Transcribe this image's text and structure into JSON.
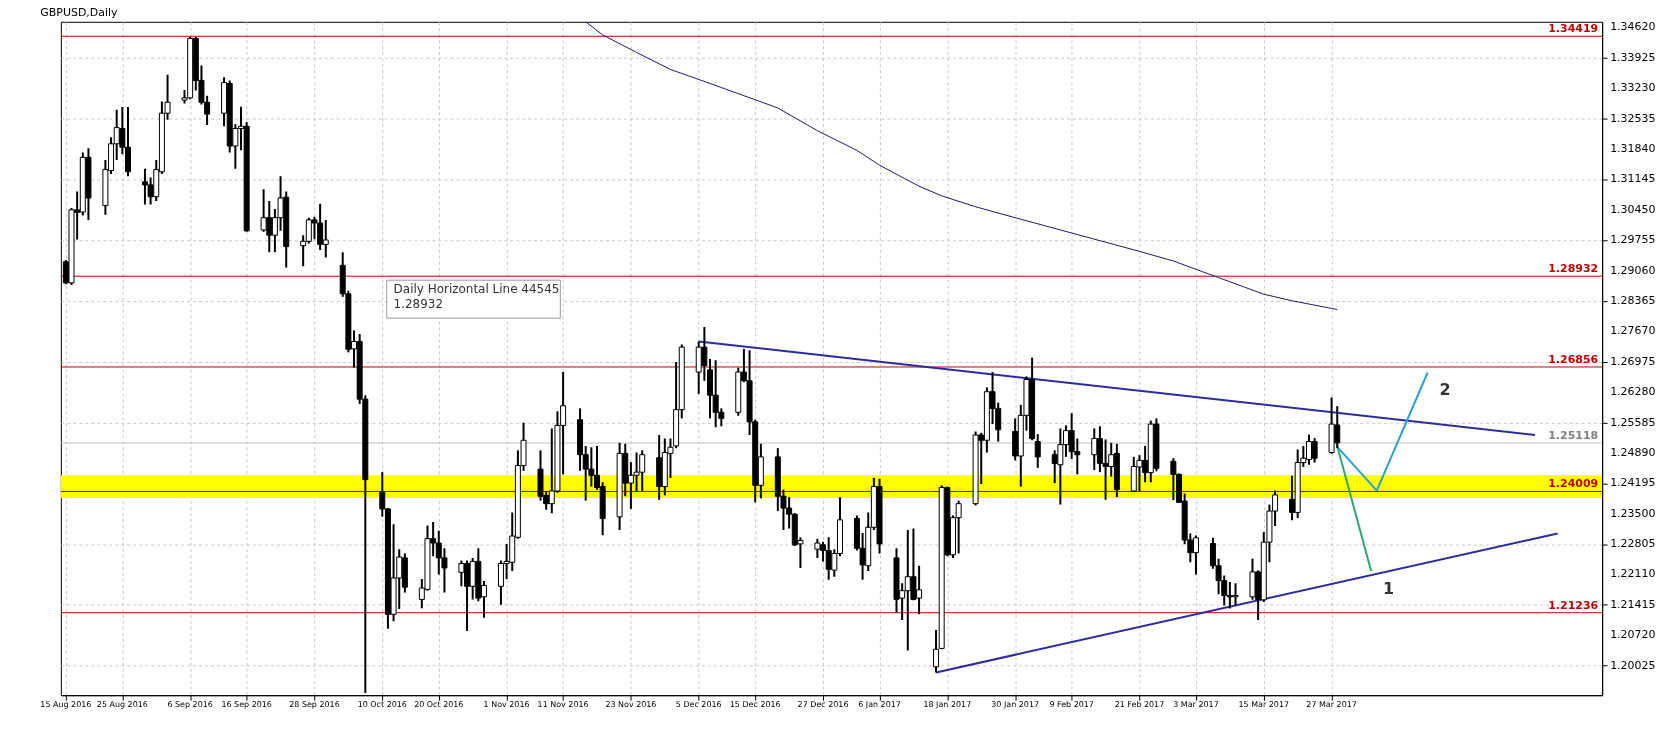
{
  "chart_data": {
    "type": "candlestick",
    "title": "GBPUSD,Daily",
    "x": [
      "2016-08-15",
      "2016-08-16",
      "2016-08-17",
      "2016-08-18",
      "2016-08-19",
      "2016-08-22",
      "2016-08-23",
      "2016-08-24",
      "2016-08-25",
      "2016-08-26",
      "2016-08-29",
      "2016-08-30",
      "2016-08-31",
      "2016-09-01",
      "2016-09-02",
      "2016-09-05",
      "2016-09-06",
      "2016-09-07",
      "2016-09-08",
      "2016-09-09",
      "2016-09-12",
      "2016-09-13",
      "2016-09-14",
      "2016-09-15",
      "2016-09-16",
      "2016-09-19",
      "2016-09-20",
      "2016-09-21",
      "2016-09-22",
      "2016-09-23",
      "2016-09-26",
      "2016-09-27",
      "2016-09-28",
      "2016-09-29",
      "2016-09-30",
      "2016-10-03",
      "2016-10-04",
      "2016-10-05",
      "2016-10-06",
      "2016-10-07",
      "2016-10-10",
      "2016-10-11",
      "2016-10-12",
      "2016-10-13",
      "2016-10-14",
      "2016-10-17",
      "2016-10-18",
      "2016-10-19",
      "2016-10-20",
      "2016-10-21",
      "2016-10-24",
      "2016-10-25",
      "2016-10-26",
      "2016-10-27",
      "2016-10-28",
      "2016-10-31",
      "2016-11-01",
      "2016-11-02",
      "2016-11-03",
      "2016-11-04",
      "2016-11-07",
      "2016-11-08",
      "2016-11-09",
      "2016-11-10",
      "2016-11-11",
      "2016-11-14",
      "2016-11-15",
      "2016-11-16",
      "2016-11-17",
      "2016-11-18",
      "2016-11-21",
      "2016-11-22",
      "2016-11-23",
      "2016-11-24",
      "2016-11-25",
      "2016-11-28",
      "2016-11-29",
      "2016-11-30",
      "2016-12-01",
      "2016-12-02",
      "2016-12-05",
      "2016-12-06",
      "2016-12-07",
      "2016-12-08",
      "2016-12-09",
      "2016-12-12",
      "2016-12-13",
      "2016-12-14",
      "2016-12-15",
      "2016-12-16",
      "2016-12-19",
      "2016-12-20",
      "2016-12-21",
      "2016-12-22",
      "2016-12-23",
      "2016-12-26",
      "2016-12-27",
      "2016-12-28",
      "2016-12-29",
      "2016-12-30",
      "2017-01-02",
      "2017-01-03",
      "2017-01-04",
      "2017-01-05",
      "2017-01-06",
      "2017-01-09",
      "2017-01-10",
      "2017-01-11",
      "2017-01-12",
      "2017-01-13",
      "2017-01-16",
      "2017-01-17",
      "2017-01-18",
      "2017-01-19",
      "2017-01-20",
      "2017-01-23",
      "2017-01-24",
      "2017-01-25",
      "2017-01-26",
      "2017-01-27",
      "2017-01-30",
      "2017-01-31",
      "2017-02-01",
      "2017-02-02",
      "2017-02-03",
      "2017-02-06",
      "2017-02-07",
      "2017-02-08",
      "2017-02-09",
      "2017-02-10",
      "2017-02-13",
      "2017-02-14",
      "2017-02-15",
      "2017-02-16",
      "2017-02-17",
      "2017-02-20",
      "2017-02-21",
      "2017-02-22",
      "2017-02-23",
      "2017-02-24",
      "2017-02-27",
      "2017-02-28",
      "2017-03-01",
      "2017-03-02",
      "2017-03-03",
      "2017-03-06",
      "2017-03-07",
      "2017-03-08",
      "2017-03-09",
      "2017-03-10",
      "2017-03-13",
      "2017-03-14",
      "2017-03-15",
      "2017-03-16",
      "2017-03-17",
      "2017-03-20",
      "2017-03-21",
      "2017-03-22",
      "2017-03-23",
      "2017-03-24",
      "2017-03-27",
      "2017-03-28"
    ],
    "ohlc": [
      [
        1.2926,
        1.293,
        1.2875,
        1.2878
      ],
      [
        1.2878,
        1.3049,
        1.2873,
        1.3045
      ],
      [
        1.3045,
        1.3087,
        1.2977,
        1.3039
      ],
      [
        1.304,
        1.3176,
        1.3032,
        1.3165
      ],
      [
        1.3165,
        1.3186,
        1.3022,
        1.3072
      ],
      [
        1.3055,
        1.3159,
        1.3034,
        1.3137
      ],
      [
        1.3135,
        1.3211,
        1.3127,
        1.3196
      ],
      [
        1.3196,
        1.3274,
        1.3159,
        1.3233
      ],
      [
        1.3231,
        1.328,
        1.3172,
        1.3188
      ],
      [
        1.3188,
        1.328,
        1.3122,
        1.3132
      ],
      [
        1.3109,
        1.3139,
        1.3057,
        1.3102
      ],
      [
        1.3102,
        1.3119,
        1.3057,
        1.3075
      ],
      [
        1.3075,
        1.3159,
        1.3065,
        1.3137
      ],
      [
        1.3132,
        1.3293,
        1.3127,
        1.3266
      ],
      [
        1.3266,
        1.3354,
        1.3251,
        1.3291
      ],
      [
        1.3296,
        1.3319,
        1.3288,
        1.3301
      ],
      [
        1.3301,
        1.344,
        1.3298,
        1.3437
      ],
      [
        1.3437,
        1.344,
        1.3318,
        1.3341
      ],
      [
        1.3341,
        1.3375,
        1.3286,
        1.3291
      ],
      [
        1.3291,
        1.3306,
        1.3239,
        1.3264
      ],
      [
        1.3266,
        1.3348,
        1.3236,
        1.3336
      ],
      [
        1.3334,
        1.3341,
        1.3176,
        1.3191
      ],
      [
        1.3191,
        1.3241,
        1.3139,
        1.3231
      ],
      [
        1.3231,
        1.3281,
        1.3181,
        1.3236
      ],
      [
        1.3236,
        1.3246,
        1.2995,
        1.2997
      ],
      [
        1.2999,
        1.3092,
        1.2995,
        1.3027
      ],
      [
        1.3027,
        1.3065,
        1.2948,
        1.2987
      ],
      [
        1.2987,
        1.3047,
        1.2948,
        1.3027
      ],
      [
        1.3027,
        1.3122,
        1.2997,
        1.3072
      ],
      [
        1.3074,
        1.3087,
        1.2913,
        1.2961
      ],
      [
        1.2963,
        1.2987,
        1.2916,
        1.2973
      ],
      [
        1.2973,
        1.3027,
        1.2968,
        1.3022
      ],
      [
        1.3022,
        1.3029,
        1.2978,
        1.3015
      ],
      [
        1.3015,
        1.3059,
        1.2953,
        1.2966
      ],
      [
        1.2966,
        1.3022,
        1.2936,
        1.2976
      ],
      [
        1.2918,
        1.2948,
        1.2846,
        1.2853
      ],
      [
        1.2853,
        1.286,
        1.2719,
        1.2726
      ],
      [
        1.2727,
        1.2769,
        1.2684,
        1.2744
      ],
      [
        1.2744,
        1.2761,
        1.2601,
        1.2612
      ],
      [
        1.2612,
        1.2621,
        1.194,
        1.2428
      ],
      [
        1.24,
        1.2445,
        1.2343,
        1.2361
      ],
      [
        1.2361,
        1.2363,
        1.2087,
        1.212
      ],
      [
        1.212,
        1.2326,
        1.2104,
        1.2203
      ],
      [
        1.2203,
        1.2269,
        1.2132,
        1.2251
      ],
      [
        1.2249,
        1.2259,
        1.217,
        1.2182
      ],
      [
        1.2154,
        1.2201,
        1.2134,
        1.218
      ],
      [
        1.2177,
        1.2323,
        1.2174,
        1.2293
      ],
      [
        1.2293,
        1.2331,
        1.2253,
        1.2283
      ],
      [
        1.2283,
        1.2311,
        1.2211,
        1.2249
      ],
      [
        1.2249,
        1.2271,
        1.217,
        1.2226
      ],
      [
        1.2216,
        1.2243,
        1.2184,
        1.2236
      ],
      [
        1.2236,
        1.2243,
        1.2082,
        1.2184
      ],
      [
        1.2184,
        1.2249,
        1.2154,
        1.2241
      ],
      [
        1.2241,
        1.2271,
        1.215,
        1.2157
      ],
      [
        1.216,
        1.2196,
        1.2112,
        1.2186
      ],
      [
        1.2184,
        1.2243,
        1.2142,
        1.2236
      ],
      [
        1.2236,
        1.2281,
        1.2201,
        1.2241
      ],
      [
        1.2239,
        1.2353,
        1.2219,
        1.2299
      ],
      [
        1.2296,
        1.2495,
        1.2293,
        1.246
      ],
      [
        1.246,
        1.2558,
        1.2448,
        1.2518
      ],
      [
        1.2452,
        1.2495,
        1.238,
        1.239
      ],
      [
        1.2392,
        1.2402,
        1.2359,
        1.2373
      ],
      [
        1.2373,
        1.2545,
        1.2351,
        1.2402
      ],
      [
        1.2402,
        1.2584,
        1.2398,
        1.2552
      ],
      [
        1.2552,
        1.2674,
        1.244,
        1.2597
      ],
      [
        1.2565,
        1.2591,
        1.2448,
        1.2485
      ],
      [
        1.2485,
        1.2505,
        1.238,
        1.2452
      ],
      [
        1.2452,
        1.2502,
        1.2412,
        1.2438
      ],
      [
        1.2438,
        1.2505,
        1.2405,
        1.241
      ],
      [
        1.2412,
        1.2422,
        1.2301,
        1.2339
      ],
      [
        1.2343,
        1.2512,
        1.2313,
        1.2488
      ],
      [
        1.2488,
        1.251,
        1.239,
        1.242
      ],
      [
        1.242,
        1.2468,
        1.2361,
        1.2438
      ],
      [
        1.2438,
        1.249,
        1.24,
        1.2445
      ],
      [
        1.2445,
        1.2495,
        1.2402,
        1.2485
      ],
      [
        1.2478,
        1.253,
        1.2382,
        1.2412
      ],
      [
        1.2412,
        1.2522,
        1.2392,
        1.249
      ],
      [
        1.2488,
        1.2522,
        1.2432,
        1.2502
      ],
      [
        1.2505,
        1.2697,
        1.25,
        1.2588
      ],
      [
        1.2588,
        1.2737,
        1.2568,
        1.2731
      ],
      [
        1.2674,
        1.2744,
        1.2624,
        1.2731
      ],
      [
        1.2731,
        1.2777,
        1.2654,
        1.2689
      ],
      [
        1.2679,
        1.2704,
        1.2568,
        1.2621
      ],
      [
        1.2621,
        1.2701,
        1.2548,
        1.2582
      ],
      [
        1.2582,
        1.2591,
        1.255,
        1.2568
      ],
      [
        1.2582,
        1.2684,
        1.2574,
        1.2674
      ],
      [
        1.2674,
        1.2727,
        1.2651,
        1.2654
      ],
      [
        1.2654,
        1.2724,
        1.253,
        1.256
      ],
      [
        1.256,
        1.2565,
        1.2376,
        1.2415
      ],
      [
        1.2415,
        1.251,
        1.2385,
        1.248
      ],
      [
        1.248,
        1.25,
        1.2356,
        1.239
      ],
      [
        1.239,
        1.2405,
        1.2313,
        1.2363
      ],
      [
        1.2363,
        1.2388,
        1.2316,
        1.2349
      ],
      [
        1.2349,
        1.2351,
        1.2276,
        1.2279
      ],
      [
        1.2281,
        1.2296,
        1.2226,
        1.2289
      ],
      [
        1.2269,
        1.2293,
        1.2249,
        1.2283
      ],
      [
        1.2279,
        1.2286,
        1.2241,
        1.2266
      ],
      [
        1.2266,
        1.2296,
        1.2199,
        1.2223
      ],
      [
        1.2221,
        1.2269,
        1.2206,
        1.2259
      ],
      [
        1.2259,
        1.2388,
        1.2253,
        1.2336
      ],
      [
        1.2339,
        1.2346,
        1.2266,
        1.2271
      ],
      [
        1.2271,
        1.2306,
        1.2199,
        1.2233
      ],
      [
        1.2231,
        1.2353,
        1.2219,
        1.2319
      ],
      [
        1.2319,
        1.2432,
        1.2313,
        1.2412
      ],
      [
        1.2412,
        1.243,
        1.2259,
        1.2281
      ],
      [
        1.2249,
        1.2271,
        1.2124,
        1.2154
      ],
      [
        1.2157,
        1.2191,
        1.2107,
        1.2174
      ],
      [
        1.2174,
        1.2313,
        1.2037,
        1.2206
      ],
      [
        1.2206,
        1.2316,
        1.2152,
        1.2154
      ],
      [
        1.2157,
        1.2231,
        1.212,
        1.2176
      ],
      [
        1.2,
        1.2084,
        1.1987,
        1.204
      ],
      [
        1.2042,
        1.2415,
        1.204,
        1.241
      ],
      [
        1.241,
        1.2412,
        1.2253,
        1.2256
      ],
      [
        1.2256,
        1.2346,
        1.2249,
        1.2341
      ],
      [
        1.2341,
        1.238,
        1.2259,
        1.2373
      ],
      [
        1.2373,
        1.2538,
        1.2369,
        1.253
      ],
      [
        1.253,
        1.2535,
        1.2418,
        1.2518
      ],
      [
        1.2518,
        1.2639,
        1.249,
        1.2629
      ],
      [
        1.2629,
        1.2674,
        1.2555,
        1.2591
      ],
      [
        1.2591,
        1.2604,
        1.2515,
        1.2542
      ],
      [
        1.2538,
        1.2568,
        1.2472,
        1.2482
      ],
      [
        1.2482,
        1.2599,
        1.2412,
        1.2575
      ],
      [
        1.2575,
        1.2664,
        1.254,
        1.2657
      ],
      [
        1.2657,
        1.2707,
        1.2518,
        1.2522
      ],
      [
        1.2515,
        1.2532,
        1.2455,
        1.248
      ],
      [
        1.2485,
        1.2495,
        1.242,
        1.2465
      ],
      [
        1.2462,
        1.2545,
        1.2371,
        1.2508
      ],
      [
        1.2508,
        1.2552,
        1.248,
        1.254
      ],
      [
        1.254,
        1.258,
        1.2475,
        1.2492
      ],
      [
        1.2492,
        1.2522,
        1.244,
        1.2485
      ],
      [
        1.2485,
        1.2545,
        1.245,
        1.2522
      ],
      [
        1.2522,
        1.255,
        1.2445,
        1.2465
      ],
      [
        1.2465,
        1.252,
        1.2382,
        1.2458
      ],
      [
        1.2458,
        1.2512,
        1.2435,
        1.2485
      ],
      [
        1.2488,
        1.251,
        1.2388,
        1.2405
      ],
      [
        1.2402,
        1.248,
        1.24,
        1.2458
      ],
      [
        1.2457,
        1.2484,
        1.2401,
        1.2472
      ],
      [
        1.2472,
        1.2505,
        1.2422,
        1.2444
      ],
      [
        1.2444,
        1.2563,
        1.2422,
        1.2555
      ],
      [
        1.2555,
        1.2568,
        1.2447,
        1.2454
      ],
      [
        1.247,
        1.2477,
        1.2381,
        1.244
      ],
      [
        1.244,
        1.2442,
        1.2376,
        1.2376
      ],
      [
        1.2379,
        1.2396,
        1.228,
        1.229
      ],
      [
        1.229,
        1.2305,
        1.2239,
        1.2261
      ],
      [
        1.2261,
        1.23,
        1.2211,
        1.2295
      ],
      [
        1.2282,
        1.2295,
        1.2224,
        1.2231
      ],
      [
        1.2231,
        1.2247,
        1.2166,
        1.2197
      ],
      [
        1.2197,
        1.2209,
        1.214,
        1.2163
      ],
      [
        1.2163,
        1.2194,
        1.2133,
        1.216
      ],
      [
        1.216,
        1.2191,
        1.214,
        1.2163
      ],
      [
        1.216,
        1.2247,
        1.2153,
        1.2217
      ],
      [
        1.2217,
        1.2221,
        1.2107,
        1.2153
      ],
      [
        1.2153,
        1.2308,
        1.2148,
        1.2285
      ],
      [
        1.2285,
        1.2371,
        1.2239,
        1.2356
      ],
      [
        1.2356,
        1.2403,
        1.2322,
        1.2393
      ],
      [
        1.2383,
        1.2437,
        1.2335,
        1.2353
      ],
      [
        1.2353,
        1.2497,
        1.234,
        1.2467
      ],
      [
        1.2467,
        1.2505,
        1.2457,
        1.2477
      ],
      [
        1.2474,
        1.2531,
        1.2462,
        1.2515
      ],
      [
        1.2515,
        1.2523,
        1.2467,
        1.2477
      ],
      [
        1.249,
        1.2616,
        1.2487,
        1.2555
      ],
      [
        1.2553,
        1.2596,
        1.25,
        1.2512
      ]
    ],
    "series": [
      {
        "type": "line",
        "color": "#1c1c6b",
        "x": [
          "2016-11-15",
          "2016-11-18",
          "2016-11-24",
          "2016-11-30",
          "2016-12-07",
          "2016-12-13",
          "2016-12-19",
          "2016-12-26",
          "2017-01-02",
          "2017-01-06",
          "2017-01-13",
          "2017-01-17",
          "2017-01-23",
          "2017-01-30",
          "2017-02-09",
          "2017-02-21",
          "2017-02-27",
          "2017-03-07",
          "2017-03-15",
          "2017-03-20",
          "2017-03-28"
        ],
        "values": [
          1.3475,
          1.3445,
          1.3405,
          1.3366,
          1.3334,
          1.3306,
          1.3278,
          1.3226,
          1.3181,
          1.3147,
          1.3099,
          1.3077,
          1.3052,
          1.3027,
          1.2992,
          1.295,
          1.2928,
          1.289,
          1.2852,
          1.2837,
          1.2817
        ]
      },
      {
        "type": "line",
        "color": "#2b2b9e",
        "x": [
          "2016-12-05",
          "2017-05-02"
        ],
        "values": [
          1.2744,
          1.253
        ]
      },
      {
        "type": "line",
        "color": "#2b2b9e",
        "x": [
          "2017-01-16",
          "2017-05-06"
        ],
        "values": [
          1.1987,
          1.2305
        ]
      },
      {
        "type": "line",
        "color": "#2ea866",
        "x": [
          "2017-03-28",
          "2017-04-03"
        ],
        "values": [
          1.2505,
          1.2219
        ]
      },
      {
        "type": "line",
        "color": "#2aa0d8",
        "x": [
          "2017-03-28",
          "2017-04-04",
          "2017-04-13"
        ],
        "values": [
          1.2503,
          1.2403,
          1.2673
        ]
      }
    ],
    "xlim": [
      "2016-08-15",
      "2017-05-13"
    ],
    "xticks": [
      {
        "value": "2016-08-15",
        "label": "15 Aug 2016"
      },
      {
        "value": "2016-08-25",
        "label": "25 Aug 2016"
      },
      {
        "value": "2016-09-06",
        "label": "6 Sep 2016"
      },
      {
        "value": "2016-09-16",
        "label": "16 Sep 2016"
      },
      {
        "value": "2016-09-28",
        "label": "28 Sep 2016"
      },
      {
        "value": "2016-10-10",
        "label": "10 Oct 2016"
      },
      {
        "value": "2016-10-20",
        "label": "20 Oct 2016"
      },
      {
        "value": "2016-11-01",
        "label": "1 Nov 2016"
      },
      {
        "value": "2016-11-11",
        "label": "11 Nov 2016"
      },
      {
        "value": "2016-11-23",
        "label": "23 Nov 2016"
      },
      {
        "value": "2016-12-05",
        "label": "5 Dec 2016"
      },
      {
        "value": "2016-12-15",
        "label": "15 Dec 2016"
      },
      {
        "value": "2016-12-27",
        "label": "27 Dec 2016"
      },
      {
        "value": "2017-01-06",
        "label": "6 Jan 2017"
      },
      {
        "value": "2017-01-18",
        "label": "18 Jan 2017"
      },
      {
        "value": "2017-01-30",
        "label": "30 Jan 2017"
      },
      {
        "value": "2017-02-09",
        "label": "9 Feb 2017"
      },
      {
        "value": "2017-02-21",
        "label": "21 Feb 2017"
      },
      {
        "value": "2017-03-03",
        "label": "3 Mar 2017"
      },
      {
        "value": "2017-03-15",
        "label": "15 Mar 2017"
      },
      {
        "value": "2017-03-27",
        "label": "27 Mar 2017"
      }
    ],
    "ylim": [
      1.1935,
      1.3475
    ],
    "yticks": [
      {
        "value": 1.3462,
        "label": "1.34620"
      },
      {
        "value": 1.33925,
        "label": "1.33925"
      },
      {
        "value": 1.3323,
        "label": "1.33230"
      },
      {
        "value": 1.32535,
        "label": "1.32535"
      },
      {
        "value": 1.3184,
        "label": "1.31840"
      },
      {
        "value": 1.31145,
        "label": "1.31145"
      },
      {
        "value": 1.3045,
        "label": "1.30450"
      },
      {
        "value": 1.29755,
        "label": "1.29755"
      },
      {
        "value": 1.2906,
        "label": "1.29060"
      },
      {
        "value": 1.28365,
        "label": "1.28365"
      },
      {
        "value": 1.2767,
        "label": "1.27670"
      },
      {
        "value": 1.26975,
        "label": "1.26975"
      },
      {
        "value": 1.2628,
        "label": "1.26280"
      },
      {
        "value": 1.25585,
        "label": "1.25585"
      },
      {
        "value": 1.2489,
        "label": "1.24890"
      },
      {
        "value": 1.24195,
        "label": "1.24195"
      },
      {
        "value": 1.235,
        "label": "1.23500"
      },
      {
        "value": 1.22805,
        "label": "1.22805"
      },
      {
        "value": 1.2211,
        "label": "1.22110"
      },
      {
        "value": 1.21415,
        "label": "1.21415"
      },
      {
        "value": 1.2072,
        "label": "1.20720"
      },
      {
        "value": 1.20025,
        "label": "1.20025"
      }
    ],
    "ref_lines": [
      {
        "axis": "y",
        "value": 1.34419,
        "label": "1.34419",
        "color": "#c00000"
      },
      {
        "axis": "y",
        "value": 1.28932,
        "label": "1.28932",
        "color": "#c00000"
      },
      {
        "axis": "y",
        "value": 1.26856,
        "label": "1.26856",
        "color": "#c00000"
      },
      {
        "axis": "y",
        "value": 1.25118,
        "label": "1.25118",
        "color": "#c0c0c0"
      },
      {
        "axis": "y",
        "value": 1.24009,
        "label": "1.24009",
        "color": "#c00000"
      },
      {
        "axis": "y",
        "value": 1.21236,
        "label": "1.21236",
        "color": "#c00000"
      }
    ],
    "bands": [
      {
        "axis": "y",
        "from": 1.2386,
        "to": 1.2438,
        "color": "#ffff00"
      }
    ],
    "annotations": [
      {
        "text": "Daily Horizontal Line 44545\n1.28932",
        "x": "2016-10-12",
        "y": 1.28932
      },
      {
        "text": "1",
        "x": "2017-04-03",
        "y": 1.2219
      },
      {
        "text": "2",
        "x": "2017-04-13",
        "y": 1.2673
      }
    ],
    "grid": true
  }
}
